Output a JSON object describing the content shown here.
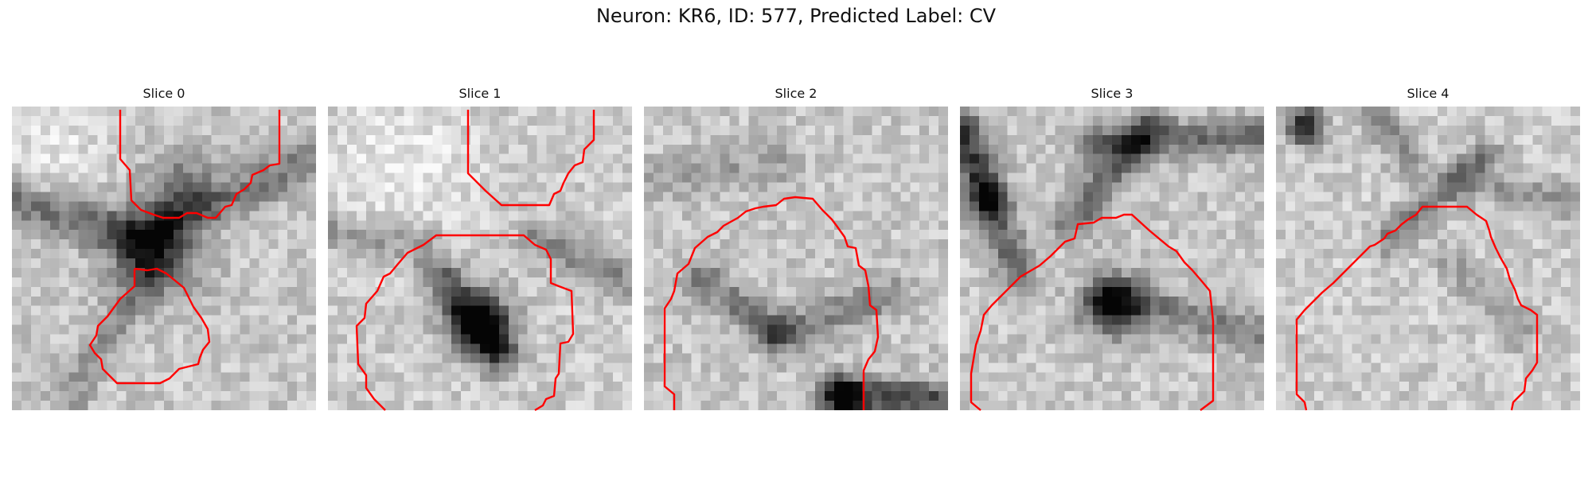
{
  "figure": {
    "title": "Neuron: KR6, ID: 577, Predicted Label: CV"
  },
  "panels": [
    {
      "title": "Slice 0"
    },
    {
      "title": "Slice 1"
    },
    {
      "title": "Slice 2"
    },
    {
      "title": "Slice 3"
    },
    {
      "title": "Slice 4"
    }
  ],
  "colors": {
    "contour": "#ff0000",
    "colormap": "grayscale"
  }
}
